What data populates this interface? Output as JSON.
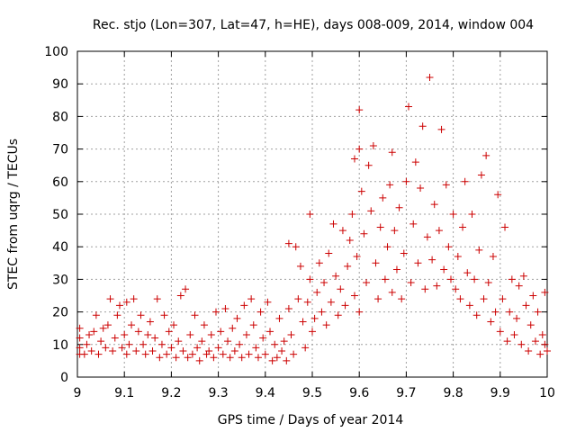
{
  "chart_data": {
    "type": "scatter",
    "title": "Rec. stjo (Lon=307, Lat=47, h=HE), days 008-009, 2014, window 004",
    "xlabel": "GPS time / Days of year 2014",
    "ylabel": "STEC from uqrg / TECUs",
    "xlim": [
      9,
      10
    ],
    "ylim": [
      0,
      100
    ],
    "x_ticks": [
      "9",
      "9.1",
      "9.2",
      "9.3",
      "9.4",
      "9.5",
      "9.6",
      "9.7",
      "9.8",
      "9.9",
      "10"
    ],
    "y_ticks": [
      "0",
      "10",
      "20",
      "30",
      "40",
      "50",
      "60",
      "70",
      "80",
      "90",
      "100"
    ],
    "grid": true,
    "marker": "plus",
    "color": "#cc0000",
    "series": [
      {
        "points": [
          [
            9.005,
            7
          ],
          [
            9.005,
            9
          ],
          [
            9.005,
            12
          ],
          [
            9.005,
            15
          ],
          [
            9.015,
            7
          ],
          [
            9.02,
            10
          ],
          [
            9.025,
            13
          ],
          [
            9.03,
            8
          ],
          [
            9.035,
            14
          ],
          [
            9.04,
            19
          ],
          [
            9.045,
            7
          ],
          [
            9.05,
            11
          ],
          [
            9.055,
            15
          ],
          [
            9.06,
            9
          ],
          [
            9.065,
            16
          ],
          [
            9.07,
            24
          ],
          [
            9.075,
            8
          ],
          [
            9.08,
            12
          ],
          [
            9.085,
            19
          ],
          [
            9.09,
            22
          ],
          [
            9.095,
            9
          ],
          [
            9.1,
            13
          ],
          [
            9.105,
            7
          ],
          [
            9.105,
            23
          ],
          [
            9.11,
            10
          ],
          [
            9.115,
            16
          ],
          [
            9.12,
            24
          ],
          [
            9.125,
            8
          ],
          [
            9.13,
            14
          ],
          [
            9.135,
            19
          ],
          [
            9.14,
            10
          ],
          [
            9.145,
            7
          ],
          [
            9.15,
            13
          ],
          [
            9.155,
            17
          ],
          [
            9.16,
            8
          ],
          [
            9.165,
            12
          ],
          [
            9.17,
            24
          ],
          [
            9.175,
            6
          ],
          [
            9.18,
            10
          ],
          [
            9.185,
            19
          ],
          [
            9.19,
            7
          ],
          [
            9.195,
            14
          ],
          [
            9.2,
            9
          ],
          [
            9.205,
            16
          ],
          [
            9.21,
            6
          ],
          [
            9.215,
            11
          ],
          [
            9.22,
            25
          ],
          [
            9.225,
            8
          ],
          [
            9.23,
            27
          ],
          [
            9.235,
            6
          ],
          [
            9.24,
            13
          ],
          [
            9.245,
            7
          ],
          [
            9.25,
            19
          ],
          [
            9.255,
            9
          ],
          [
            9.26,
            5
          ],
          [
            9.265,
            11
          ],
          [
            9.27,
            16
          ],
          [
            9.275,
            7
          ],
          [
            9.28,
            8
          ],
          [
            9.285,
            13
          ],
          [
            9.29,
            6
          ],
          [
            9.295,
            20
          ],
          [
            9.3,
            9
          ],
          [
            9.305,
            14
          ],
          [
            9.31,
            7
          ],
          [
            9.315,
            21
          ],
          [
            9.32,
            11
          ],
          [
            9.325,
            6
          ],
          [
            9.33,
            15
          ],
          [
            9.335,
            8
          ],
          [
            9.34,
            18
          ],
          [
            9.345,
            10
          ],
          [
            9.35,
            6
          ],
          [
            9.355,
            22
          ],
          [
            9.36,
            13
          ],
          [
            9.365,
            7
          ],
          [
            9.37,
            24
          ],
          [
            9.375,
            16
          ],
          [
            9.38,
            9
          ],
          [
            9.385,
            6
          ],
          [
            9.39,
            20
          ],
          [
            9.395,
            12
          ],
          [
            9.4,
            7
          ],
          [
            9.405,
            23
          ],
          [
            9.41,
            14
          ],
          [
            9.415,
            5
          ],
          [
            9.42,
            10
          ],
          [
            9.425,
            6
          ],
          [
            9.43,
            18
          ],
          [
            9.435,
            8
          ],
          [
            9.44,
            11
          ],
          [
            9.445,
            5
          ],
          [
            9.45,
            21
          ],
          [
            9.45,
            41
          ],
          [
            9.455,
            13
          ],
          [
            9.46,
            7
          ],
          [
            9.465,
            40
          ],
          [
            9.47,
            24
          ],
          [
            9.475,
            34
          ],
          [
            9.48,
            17
          ],
          [
            9.485,
            9
          ],
          [
            9.49,
            23
          ],
          [
            9.495,
            30
          ],
          [
            9.495,
            50
          ],
          [
            9.5,
            14
          ],
          [
            9.505,
            18
          ],
          [
            9.51,
            26
          ],
          [
            9.515,
            35
          ],
          [
            9.52,
            20
          ],
          [
            9.525,
            29
          ],
          [
            9.53,
            16
          ],
          [
            9.535,
            38
          ],
          [
            9.54,
            23
          ],
          [
            9.545,
            47
          ],
          [
            9.55,
            31
          ],
          [
            9.555,
            19
          ],
          [
            9.56,
            27
          ],
          [
            9.565,
            45
          ],
          [
            9.57,
            22
          ],
          [
            9.575,
            34
          ],
          [
            9.58,
            42
          ],
          [
            9.585,
            50
          ],
          [
            9.59,
            25
          ],
          [
            9.59,
            67
          ],
          [
            9.595,
            37
          ],
          [
            9.6,
            20
          ],
          [
            9.6,
            82
          ],
          [
            9.6,
            70
          ],
          [
            9.605,
            57
          ],
          [
            9.61,
            44
          ],
          [
            9.615,
            29
          ],
          [
            9.62,
            65
          ],
          [
            9.625,
            51
          ],
          [
            9.63,
            71
          ],
          [
            9.635,
            35
          ],
          [
            9.64,
            24
          ],
          [
            9.645,
            46
          ],
          [
            9.65,
            55
          ],
          [
            9.655,
            30
          ],
          [
            9.66,
            40
          ],
          [
            9.665,
            59
          ],
          [
            9.67,
            26
          ],
          [
            9.67,
            69
          ],
          [
            9.675,
            45
          ],
          [
            9.68,
            33
          ],
          [
            9.685,
            52
          ],
          [
            9.69,
            24
          ],
          [
            9.695,
            38
          ],
          [
            9.7,
            60
          ],
          [
            9.705,
            83
          ],
          [
            9.71,
            29
          ],
          [
            9.715,
            47
          ],
          [
            9.72,
            66
          ],
          [
            9.725,
            35
          ],
          [
            9.73,
            58
          ],
          [
            9.735,
            77
          ],
          [
            9.74,
            27
          ],
          [
            9.745,
            43
          ],
          [
            9.75,
            92
          ],
          [
            9.755,
            36
          ],
          [
            9.76,
            53
          ],
          [
            9.765,
            28
          ],
          [
            9.77,
            45
          ],
          [
            9.775,
            76
          ],
          [
            9.78,
            33
          ],
          [
            9.785,
            59
          ],
          [
            9.79,
            40
          ],
          [
            9.795,
            30
          ],
          [
            9.8,
            50
          ],
          [
            9.805,
            27
          ],
          [
            9.81,
            37
          ],
          [
            9.815,
            24
          ],
          [
            9.82,
            46
          ],
          [
            9.825,
            60
          ],
          [
            9.83,
            32
          ],
          [
            9.835,
            22
          ],
          [
            9.84,
            50
          ],
          [
            9.845,
            30
          ],
          [
            9.85,
            19
          ],
          [
            9.855,
            39
          ],
          [
            9.86,
            62
          ],
          [
            9.865,
            24
          ],
          [
            9.87,
            68
          ],
          [
            9.875,
            29
          ],
          [
            9.88,
            17
          ],
          [
            9.885,
            37
          ],
          [
            9.89,
            20
          ],
          [
            9.895,
            56
          ],
          [
            9.9,
            14
          ],
          [
            9.905,
            24
          ],
          [
            9.91,
            46
          ],
          [
            9.915,
            11
          ],
          [
            9.92,
            20
          ],
          [
            9.925,
            30
          ],
          [
            9.93,
            13
          ],
          [
            9.935,
            18
          ],
          [
            9.94,
            28
          ],
          [
            9.945,
            10
          ],
          [
            9.95,
            31
          ],
          [
            9.955,
            22
          ],
          [
            9.96,
            8
          ],
          [
            9.965,
            16
          ],
          [
            9.97,
            25
          ],
          [
            9.975,
            11
          ],
          [
            9.98,
            20
          ],
          [
            9.985,
            7
          ],
          [
            9.99,
            13
          ],
          [
            9.995,
            26
          ],
          [
            9.995,
            10
          ],
          [
            10.0,
            8
          ]
        ]
      }
    ]
  }
}
